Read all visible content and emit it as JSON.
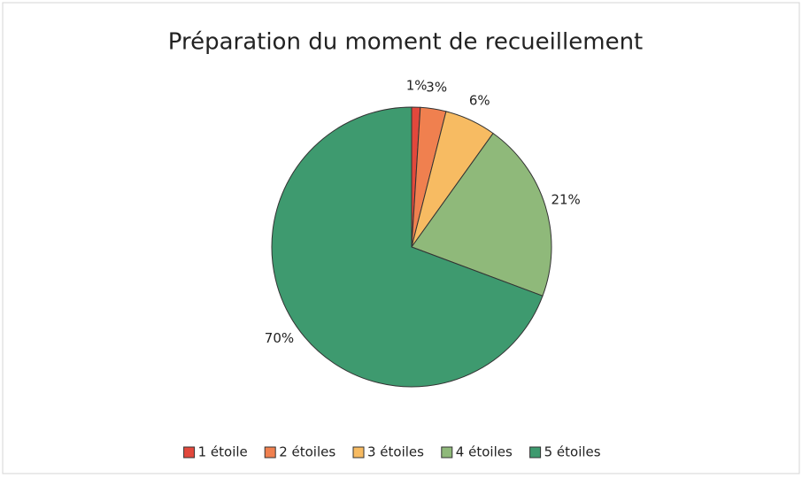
{
  "chart_data": {
    "type": "pie",
    "title": "Préparation du moment de recueillement",
    "categories": [
      "1 étoile",
      "2 étoiles",
      "3 étoiles",
      "4 étoiles",
      "5 étoiles"
    ],
    "values": [
      1,
      3,
      6,
      21,
      70
    ],
    "value_labels": [
      "1%",
      "3%",
      "6%",
      "21%",
      "70%"
    ],
    "colors": [
      "#e2483c",
      "#f0804f",
      "#f7bb62",
      "#8fb97a",
      "#3e9a6f"
    ],
    "legend": "bottom"
  }
}
